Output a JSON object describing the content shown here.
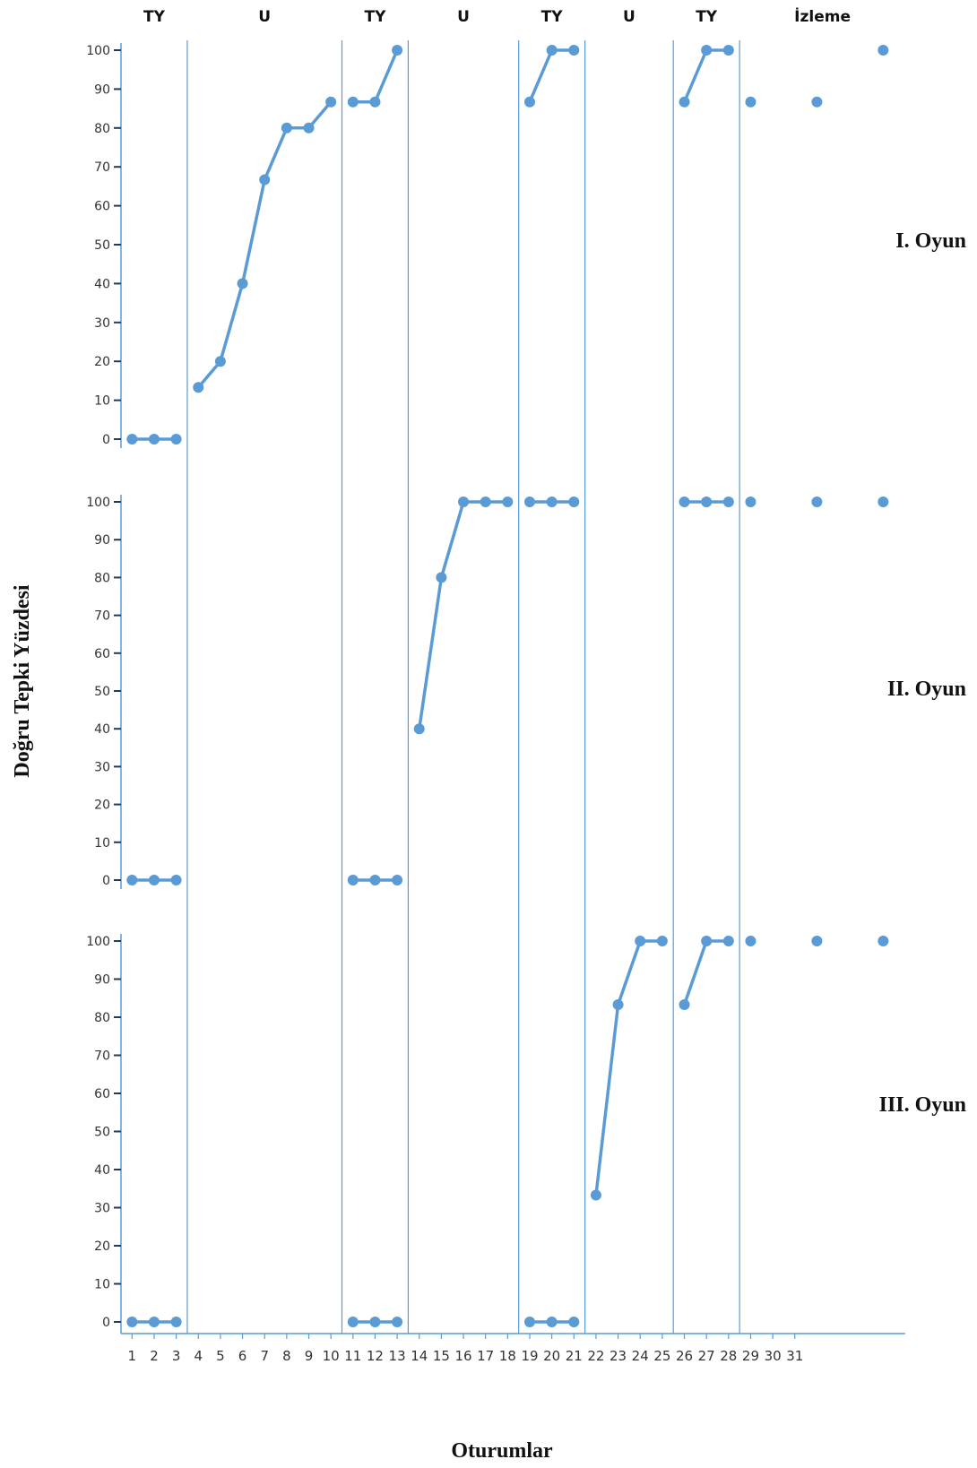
{
  "chart_data": {
    "type": "line",
    "ylabel": "Doğru Tepki Yüzdesi",
    "xlabel": "Oturumlar",
    "ylim": [
      0,
      100
    ],
    "yticks": [
      0,
      10,
      20,
      30,
      40,
      50,
      60,
      70,
      80,
      90,
      100
    ],
    "xlim": [
      0.5,
      36
    ],
    "x_tick_labels": [
      {
        "x": 1,
        "label": "1"
      },
      {
        "x": 2,
        "label": "2"
      },
      {
        "x": 3,
        "label": "3"
      },
      {
        "x": 4,
        "label": "4"
      },
      {
        "x": 5,
        "label": "5"
      },
      {
        "x": 6,
        "label": "6"
      },
      {
        "x": 7,
        "label": "7"
      },
      {
        "x": 8,
        "label": "8"
      },
      {
        "x": 9,
        "label": "9"
      },
      {
        "x": 10,
        "label": "10"
      },
      {
        "x": 11,
        "label": "11"
      },
      {
        "x": 12,
        "label": "12"
      },
      {
        "x": 13,
        "label": "13"
      },
      {
        "x": 14,
        "label": "14"
      },
      {
        "x": 15,
        "label": "15"
      },
      {
        "x": 16,
        "label": "16"
      },
      {
        "x": 17,
        "label": "17"
      },
      {
        "x": 18,
        "label": "18"
      },
      {
        "x": 19,
        "label": "19"
      },
      {
        "x": 20,
        "label": "20"
      },
      {
        "x": 21,
        "label": "21"
      },
      {
        "x": 22,
        "label": "22"
      },
      {
        "x": 23,
        "label": "23"
      },
      {
        "x": 24,
        "label": "24"
      },
      {
        "x": 25,
        "label": "25"
      },
      {
        "x": 26,
        "label": "26"
      },
      {
        "x": 27,
        "label": "27"
      },
      {
        "x": 28,
        "label": "28"
      },
      {
        "x": 29,
        "label": "29"
      },
      {
        "x": 30,
        "label": "30"
      },
      {
        "x": 31,
        "label": "31"
      }
    ],
    "phases": [
      {
        "label": "TY",
        "start": 0.5,
        "end": 3.5
      },
      {
        "label": "U",
        "start": 3.5,
        "end": 10.5
      },
      {
        "label": "TY",
        "start": 10.5,
        "end": 13.5
      },
      {
        "label": "U",
        "start": 13.5,
        "end": 18.5
      },
      {
        "label": "TY",
        "start": 18.5,
        "end": 21.5
      },
      {
        "label": "U",
        "start": 21.5,
        "end": 25.5
      },
      {
        "label": "TY",
        "start": 25.5,
        "end": 28.5
      },
      {
        "label": "İzleme",
        "start": 28.5,
        "end": 36
      }
    ],
    "phase_lines": [
      3.5,
      10.5,
      13.5,
      18.5,
      21.5,
      25.5,
      28.5
    ],
    "panels": [
      {
        "label": "I. Oyun",
        "segments": [
          [
            [
              1,
              0
            ],
            [
              2,
              0
            ],
            [
              3,
              0
            ]
          ],
          [
            [
              4,
              13.3
            ],
            [
              5,
              20
            ],
            [
              6,
              40
            ],
            [
              7,
              66.7
            ],
            [
              8,
              80
            ],
            [
              9,
              80
            ],
            [
              10,
              86.7
            ]
          ],
          [
            [
              11,
              86.7
            ],
            [
              12,
              86.7
            ],
            [
              13,
              100
            ]
          ],
          [
            [
              19,
              86.7
            ],
            [
              20,
              100
            ],
            [
              21,
              100
            ]
          ],
          [
            [
              26,
              86.7
            ],
            [
              27,
              100
            ],
            [
              28,
              100
            ]
          ],
          [
            [
              29,
              86.7
            ]
          ],
          [
            [
              32,
              86.7
            ]
          ],
          [
            [
              35,
              100
            ]
          ]
        ]
      },
      {
        "label": "II. Oyun",
        "segments": [
          [
            [
              1,
              0
            ],
            [
              2,
              0
            ],
            [
              3,
              0
            ]
          ],
          [
            [
              11,
              0
            ],
            [
              12,
              0
            ],
            [
              13,
              0
            ]
          ],
          [
            [
              14,
              40
            ],
            [
              15,
              80
            ],
            [
              16,
              100
            ],
            [
              17,
              100
            ],
            [
              18,
              100
            ]
          ],
          [
            [
              19,
              100
            ],
            [
              20,
              100
            ],
            [
              21,
              100
            ]
          ],
          [
            [
              26,
              100
            ],
            [
              27,
              100
            ],
            [
              28,
              100
            ]
          ],
          [
            [
              29,
              100
            ]
          ],
          [
            [
              32,
              100
            ]
          ],
          [
            [
              35,
              100
            ]
          ]
        ]
      },
      {
        "label": "III. Oyun",
        "segments": [
          [
            [
              1,
              0
            ],
            [
              2,
              0
            ],
            [
              3,
              0
            ]
          ],
          [
            [
              11,
              0
            ],
            [
              12,
              0
            ],
            [
              13,
              0
            ]
          ],
          [
            [
              19,
              0
            ],
            [
              20,
              0
            ],
            [
              21,
              0
            ]
          ],
          [
            [
              22,
              33.3
            ],
            [
              23,
              83.3
            ],
            [
              24,
              100
            ],
            [
              25,
              100
            ]
          ],
          [
            [
              26,
              83.3
            ],
            [
              27,
              100
            ],
            [
              28,
              100
            ]
          ],
          [
            [
              29,
              100
            ]
          ],
          [
            [
              32,
              100
            ]
          ],
          [
            [
              35,
              100
            ]
          ]
        ]
      }
    ],
    "colors": {
      "line": "#5b9bd5",
      "marker": "#5b9bd5",
      "axis": "#5b9bd5",
      "phase_line": "#5b9bd5"
    }
  }
}
